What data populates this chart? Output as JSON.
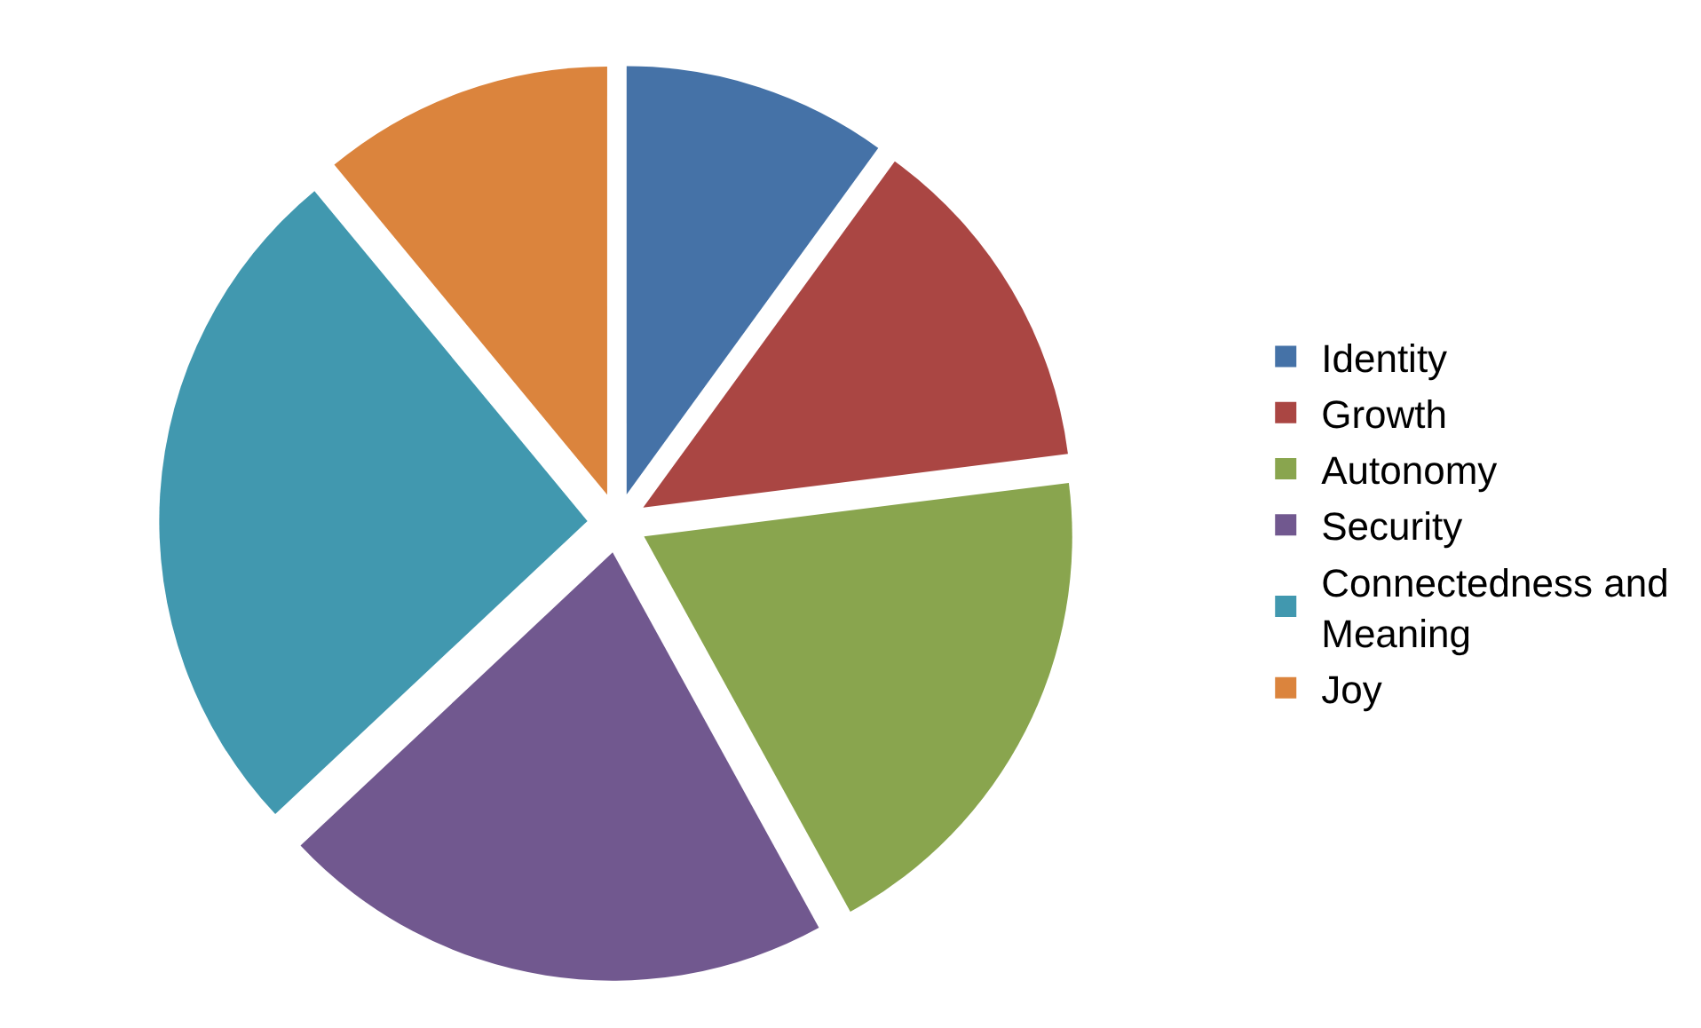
{
  "chart_data": {
    "type": "pie",
    "categories": [
      "Identity",
      "Growth",
      "Autonomy",
      "Security",
      "Connectedness and Meaning",
      "Joy"
    ],
    "values": [
      10,
      13,
      19,
      21,
      26,
      11
    ],
    "colors": [
      "#4572a7",
      "#aa4643",
      "#89a54e",
      "#71588f",
      "#4198af",
      "#db843d"
    ],
    "legend": "right"
  }
}
